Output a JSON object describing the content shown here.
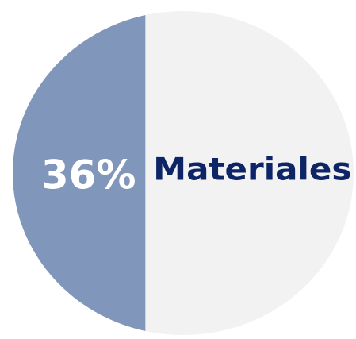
{
  "chart_data": {
    "type": "circle-fill",
    "categories": [
      "Materiales"
    ],
    "values": [
      36
    ],
    "value_labels": [
      "36%"
    ],
    "colors": [
      "#8096bb",
      "#f2f2f2"
    ],
    "label_color": "#0d2466",
    "value_label_color": "#ffffff"
  }
}
